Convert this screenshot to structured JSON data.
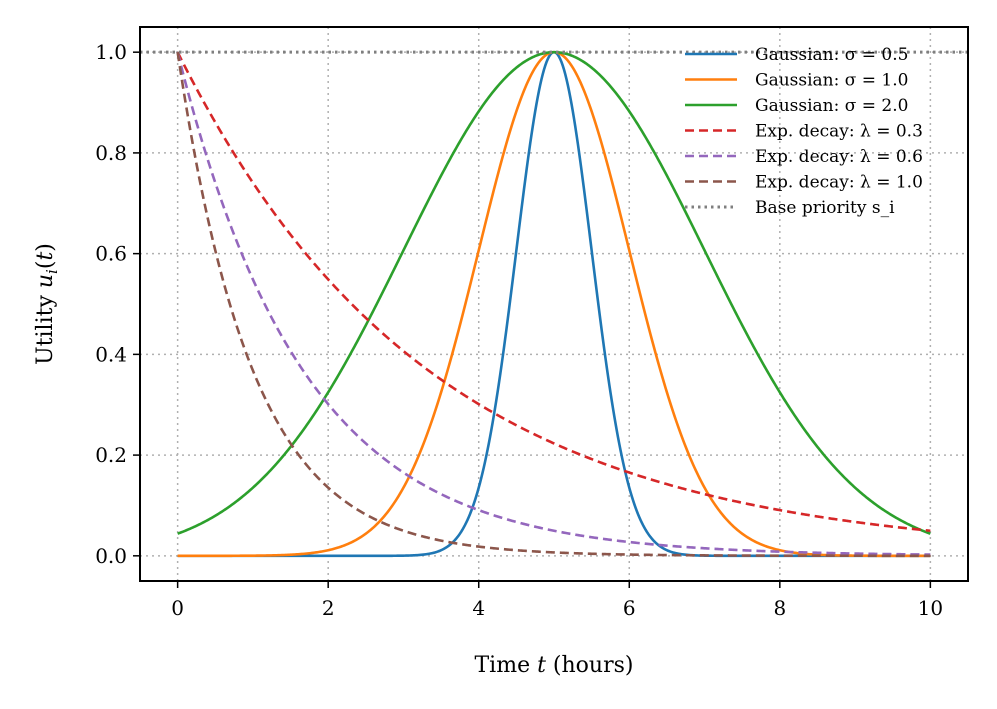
{
  "chart_data": {
    "type": "line",
    "title": "",
    "xlabel": "Time t (hours)",
    "ylabel": "Utility u_i(t)",
    "xlim": [
      -0.5,
      10.5
    ],
    "ylim": [
      -0.05,
      1.05
    ],
    "xticks": [
      0,
      2,
      4,
      6,
      8,
      10
    ],
    "xtick_labels": [
      "0",
      "2",
      "4",
      "6",
      "8",
      "10"
    ],
    "yticks": [
      0.0,
      0.2,
      0.4,
      0.6,
      0.8,
      1.0
    ],
    "ytick_labels": [
      "0.0",
      "0.2",
      "0.4",
      "0.6",
      "0.8",
      "1.0"
    ],
    "grid": true,
    "legend_position": "top-right",
    "x_range": [
      0,
      10
    ],
    "series": [
      {
        "name": "Gaussian: σ = 0.5",
        "kind": "gaussian",
        "center": 5,
        "sigma": 0.5,
        "color": "#1f77b4",
        "style": "solid"
      },
      {
        "name": "Gaussian: σ = 1.0",
        "kind": "gaussian",
        "center": 5,
        "sigma": 1.0,
        "color": "#ff7f0e",
        "style": "solid"
      },
      {
        "name": "Gaussian: σ = 2.0",
        "kind": "gaussian",
        "center": 5,
        "sigma": 2.0,
        "color": "#2ca02c",
        "style": "solid"
      },
      {
        "name": "Exp. decay: λ = 0.3",
        "kind": "exp",
        "lambda": 0.3,
        "color": "#d62728",
        "style": "dashed"
      },
      {
        "name": "Exp. decay: λ = 0.6",
        "kind": "exp",
        "lambda": 0.6,
        "color": "#9467bd",
        "style": "dashed"
      },
      {
        "name": "Exp. decay: λ = 1.0",
        "kind": "exp",
        "lambda": 1.0,
        "color": "#8c564b",
        "style": "dashed"
      },
      {
        "name": "Base priority s_i",
        "kind": "constant",
        "value": 1.0,
        "color": "#7f7f7f",
        "style": "dotted"
      }
    ]
  }
}
